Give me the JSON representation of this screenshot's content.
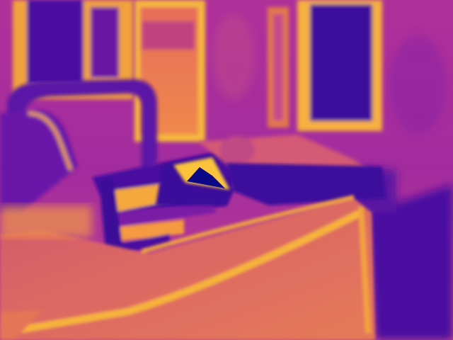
{
  "image": {
    "kind": "false-color depth/heatmap rendering of an indoor room",
    "colormap": [
      "#0d0887",
      "#5c01a6",
      "#9c179e",
      "#cc4778",
      "#ed7953",
      "#fdb42f",
      "#f0f921"
    ],
    "colors": {
      "far": "#3a0a9a",
      "mid": "#b02c9b",
      "near": "#f08a4b",
      "edge_highlight": "#fcc23a"
    }
  }
}
